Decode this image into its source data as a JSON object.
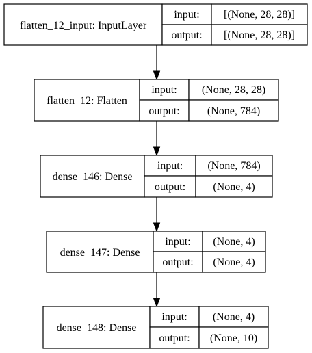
{
  "layers": [
    {
      "name": "flatten_12_input: InputLayer",
      "input_label": "input:",
      "input_value": "[(None, 28, 28)]",
      "output_label": "output:",
      "output_value": "[(None, 28, 28)]"
    },
    {
      "name": "flatten_12: Flatten",
      "input_label": "input:",
      "input_value": "(None, 28, 28)",
      "output_label": "output:",
      "output_value": "(None, 784)"
    },
    {
      "name": "dense_146: Dense",
      "input_label": "input:",
      "input_value": "(None, 784)",
      "output_label": "output:",
      "output_value": "(None, 4)"
    },
    {
      "name": "dense_147: Dense",
      "input_label": "input:",
      "input_value": "(None, 4)",
      "output_label": "output:",
      "output_value": "(None, 4)"
    },
    {
      "name": "dense_148: Dense",
      "input_label": "input:",
      "input_value": "(None, 4)",
      "output_label": "output:",
      "output_value": "(None, 10)"
    }
  ]
}
